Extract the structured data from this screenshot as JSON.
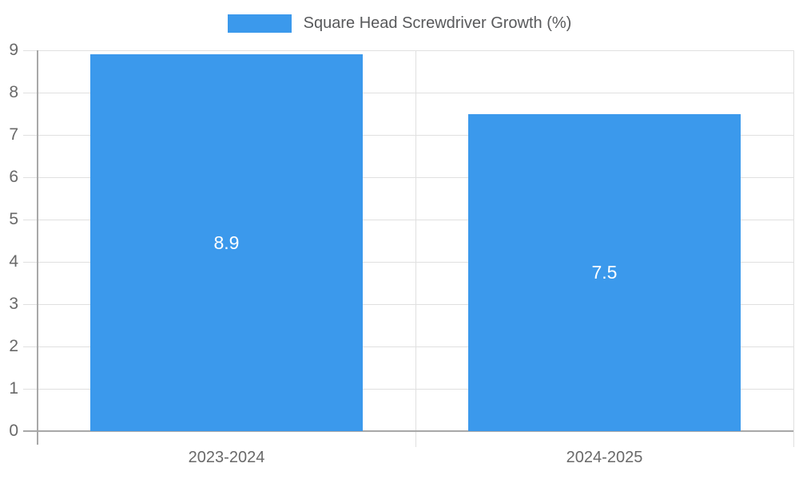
{
  "chart_data": {
    "type": "bar",
    "categories": [
      "2023-2024",
      "2024-2025"
    ],
    "series": [
      {
        "name": "Square Head Screwdriver Growth (%)",
        "color": "#3B99EC",
        "values": [
          8.9,
          7.5
        ]
      }
    ],
    "value_labels": [
      "8.9",
      "7.5"
    ],
    "title": "Square Head Screwdriver Growth (%)",
    "xlabel": "",
    "ylabel": "",
    "ylim": [
      0,
      9
    ],
    "yticks": [
      0,
      1,
      2,
      3,
      4,
      5,
      6,
      7,
      8,
      9
    ],
    "grid": true,
    "legend_position": "top",
    "value_label_color": "#ffffff"
  }
}
